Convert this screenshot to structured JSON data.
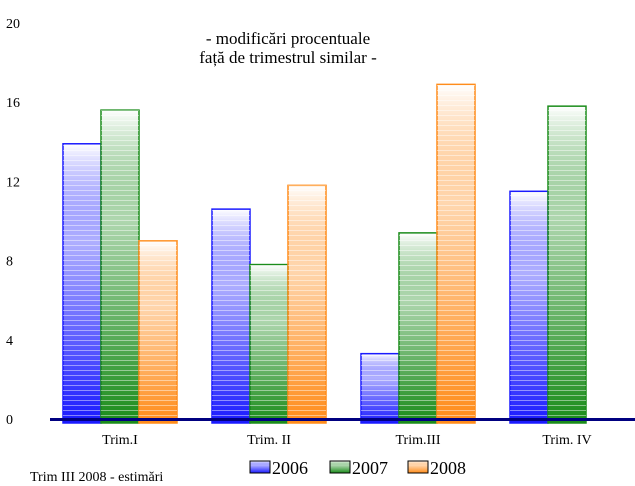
{
  "chart_data": {
    "type": "bar",
    "title_lines": [
      "- modificări procentuale",
      "față de trimestrul similar -"
    ],
    "categories": [
      "Trim.I",
      "Trim. II",
      "Trim.III",
      "Trim. IV"
    ],
    "series": [
      {
        "name": "2006",
        "values": [
          13.9,
          10.6,
          3.3,
          11.5
        ],
        "color": "#1a1aff"
      },
      {
        "name": "2007",
        "values": [
          15.6,
          7.8,
          9.4,
          15.8
        ],
        "color": "#1a8c1a"
      },
      {
        "name": "2008",
        "values": [
          9.0,
          11.8,
          16.9,
          null
        ],
        "color": "#ff8c1a"
      }
    ],
    "ylim": [
      0,
      20
    ],
    "yticks": [
      0,
      4,
      8,
      12,
      16,
      20
    ],
    "ytick_labels": [
      "0",
      "4",
      "8",
      "12",
      "16",
      "20"
    ],
    "grid": false,
    "legend_position": "bottom",
    "note": "Trim III 2008 - estimări"
  }
}
